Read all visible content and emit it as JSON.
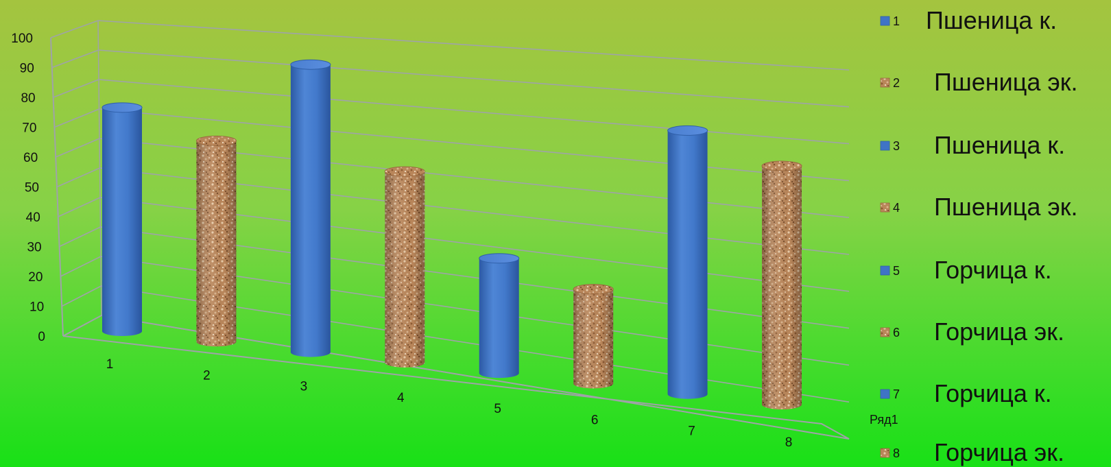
{
  "chart_data": {
    "type": "bar",
    "style": "3d-cylinder",
    "categories": [
      "1",
      "2",
      "3",
      "4",
      "5",
      "6",
      "7",
      "8"
    ],
    "series": [
      {
        "name": "Ряд1",
        "values": [
          77,
          67,
          93,
          60,
          35,
          28,
          76,
          67
        ]
      }
    ],
    "point_fills": [
      "blue",
      "cork",
      "blue",
      "cork",
      "blue",
      "cork",
      "blue",
      "cork"
    ],
    "yticks": [
      0,
      10,
      20,
      30,
      40,
      50,
      60,
      70,
      80,
      90,
      100
    ],
    "ylim": [
      0,
      100
    ],
    "grid": true,
    "legend_position": "right",
    "legend": [
      {
        "key": "1",
        "fill": "blue",
        "text": "Пшеница к."
      },
      {
        "key": "2",
        "fill": "cork",
        "text": "Пшеница эк."
      },
      {
        "key": "3",
        "fill": "blue",
        "text": "Пшеница к."
      },
      {
        "key": "4",
        "fill": "cork",
        "text": "Пшеница эк."
      },
      {
        "key": "5",
        "fill": "blue",
        "text": "Горчица к."
      },
      {
        "key": "6",
        "fill": "cork",
        "text": "Горчица эк."
      },
      {
        "key": "7",
        "fill": "blue",
        "text": "Горчица к."
      },
      {
        "key": "8",
        "fill": "cork",
        "text": "Горчица эк."
      }
    ],
    "colors": {
      "blue": "#3f74c6",
      "cork": "#b9865a",
      "gridline": "#9fa3a8"
    }
  }
}
